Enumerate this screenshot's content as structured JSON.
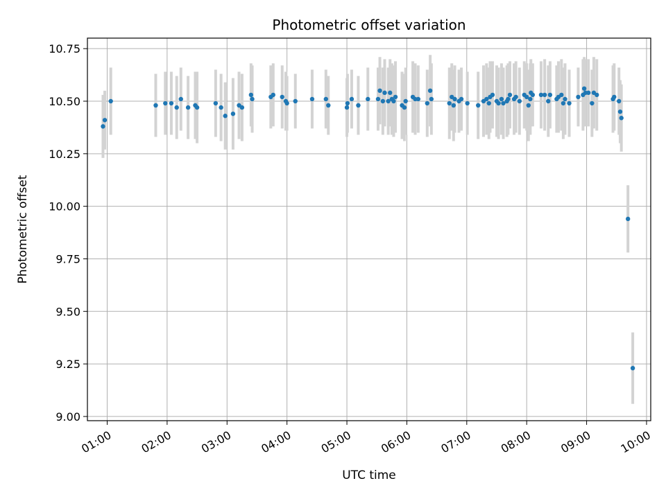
{
  "chart_data": {
    "type": "scatter",
    "title": "Photometric offset variation",
    "xlabel": "UTC time",
    "ylabel": "Photometric offset",
    "x_unit": "hours UTC",
    "xlim": [
      0.67,
      10.07
    ],
    "ylim": [
      8.98,
      10.8
    ],
    "x_ticks": [
      1,
      2,
      3,
      4,
      5,
      6,
      7,
      8,
      9,
      10
    ],
    "x_tick_labels": [
      "01:00",
      "02:00",
      "03:00",
      "04:00",
      "05:00",
      "06:00",
      "07:00",
      "08:00",
      "09:00",
      "10:00"
    ],
    "y_ticks": [
      9.0,
      9.25,
      9.5,
      9.75,
      10.0,
      10.25,
      10.5,
      10.75
    ],
    "y_tick_labels": [
      "9.00",
      "9.25",
      "9.50",
      "9.75",
      "10.00",
      "10.25",
      "10.50",
      "10.75"
    ],
    "grid": true,
    "colors": {
      "points": "#1f77b4",
      "errorbars": "#d3d3d3",
      "grid": "#b0b0b0"
    },
    "series": [
      {
        "x": [
          0.93,
          0.96,
          1.06,
          1.81,
          1.97,
          2.07,
          2.16,
          2.23,
          2.35,
          2.47,
          2.5,
          2.81,
          2.9,
          2.97,
          3.1,
          3.2,
          3.25,
          3.4,
          3.42,
          3.73,
          3.77,
          3.92,
          3.98,
          4.0,
          4.14,
          4.42,
          4.65,
          4.69,
          5.0,
          5.01,
          5.08,
          5.19,
          5.35,
          5.52,
          5.55,
          5.6,
          5.63,
          5.69,
          5.72,
          5.75,
          5.78,
          5.81,
          5.92,
          5.96,
          5.98,
          6.1,
          6.14,
          6.19,
          6.34,
          6.39,
          6.41,
          6.71,
          6.75,
          6.78,
          6.8,
          6.87,
          6.91,
          7.01,
          7.19,
          7.28,
          7.33,
          7.37,
          7.39,
          7.43,
          7.5,
          7.53,
          7.58,
          7.61,
          7.67,
          7.69,
          7.72,
          7.79,
          7.82,
          7.88,
          7.96,
          8.0,
          8.03,
          8.06,
          8.07,
          8.1,
          8.24,
          8.3,
          8.36,
          8.39,
          8.5,
          8.53,
          8.58,
          8.61,
          8.64,
          8.71,
          8.86,
          8.94,
          8.96,
          8.98,
          9.03,
          9.09,
          9.12,
          9.17,
          9.44,
          9.46,
          9.54,
          9.56,
          9.58,
          9.69,
          9.77
        ],
        "y": [
          10.38,
          10.41,
          10.5,
          10.48,
          10.49,
          10.49,
          10.47,
          10.51,
          10.47,
          10.48,
          10.47,
          10.49,
          10.47,
          10.43,
          10.44,
          10.48,
          10.47,
          10.53,
          10.51,
          10.52,
          10.53,
          10.52,
          10.5,
          10.49,
          10.5,
          10.51,
          10.51,
          10.48,
          10.47,
          10.49,
          10.51,
          10.48,
          10.51,
          10.51,
          10.55,
          10.5,
          10.54,
          10.5,
          10.54,
          10.51,
          10.5,
          10.52,
          10.48,
          10.47,
          10.5,
          10.52,
          10.51,
          10.51,
          10.49,
          10.55,
          10.51,
          10.49,
          10.52,
          10.48,
          10.51,
          10.5,
          10.51,
          10.49,
          10.48,
          10.5,
          10.51,
          10.49,
          10.52,
          10.53,
          10.5,
          10.49,
          10.51,
          10.49,
          10.5,
          10.51,
          10.53,
          10.51,
          10.52,
          10.5,
          10.53,
          10.52,
          10.48,
          10.51,
          10.54,
          10.53,
          10.53,
          10.53,
          10.5,
          10.53,
          10.51,
          10.52,
          10.53,
          10.49,
          10.51,
          10.49,
          10.52,
          10.53,
          10.56,
          10.54,
          10.54,
          10.49,
          10.54,
          10.53,
          10.51,
          10.52,
          10.5,
          10.45,
          10.42,
          9.94,
          9.23
        ],
        "yerr": [
          0.15,
          0.14,
          0.16,
          0.15,
          0.15,
          0.15,
          0.15,
          0.15,
          0.15,
          0.16,
          0.17,
          0.16,
          0.16,
          0.16,
          0.17,
          0.16,
          0.16,
          0.15,
          0.16,
          0.15,
          0.15,
          0.15,
          0.14,
          0.13,
          0.13,
          0.14,
          0.14,
          0.14,
          0.14,
          0.14,
          0.14,
          0.14,
          0.15,
          0.15,
          0.16,
          0.16,
          0.16,
          0.16,
          0.16,
          0.17,
          0.17,
          0.17,
          0.16,
          0.16,
          0.16,
          0.17,
          0.17,
          0.16,
          0.16,
          0.17,
          0.17,
          0.17,
          0.16,
          0.17,
          0.16,
          0.15,
          0.15,
          0.15,
          0.16,
          0.17,
          0.17,
          0.17,
          0.17,
          0.16,
          0.17,
          0.17,
          0.17,
          0.17,
          0.17,
          0.17,
          0.16,
          0.17,
          0.17,
          0.16,
          0.16,
          0.16,
          0.17,
          0.17,
          0.16,
          0.15,
          0.16,
          0.17,
          0.17,
          0.16,
          0.16,
          0.17,
          0.17,
          0.17,
          0.17,
          0.16,
          0.14,
          0.17,
          0.15,
          0.16,
          0.16,
          0.16,
          0.17,
          0.17,
          0.16,
          0.16,
          0.16,
          0.15,
          0.16,
          0.16,
          0.17
        ]
      }
    ]
  }
}
